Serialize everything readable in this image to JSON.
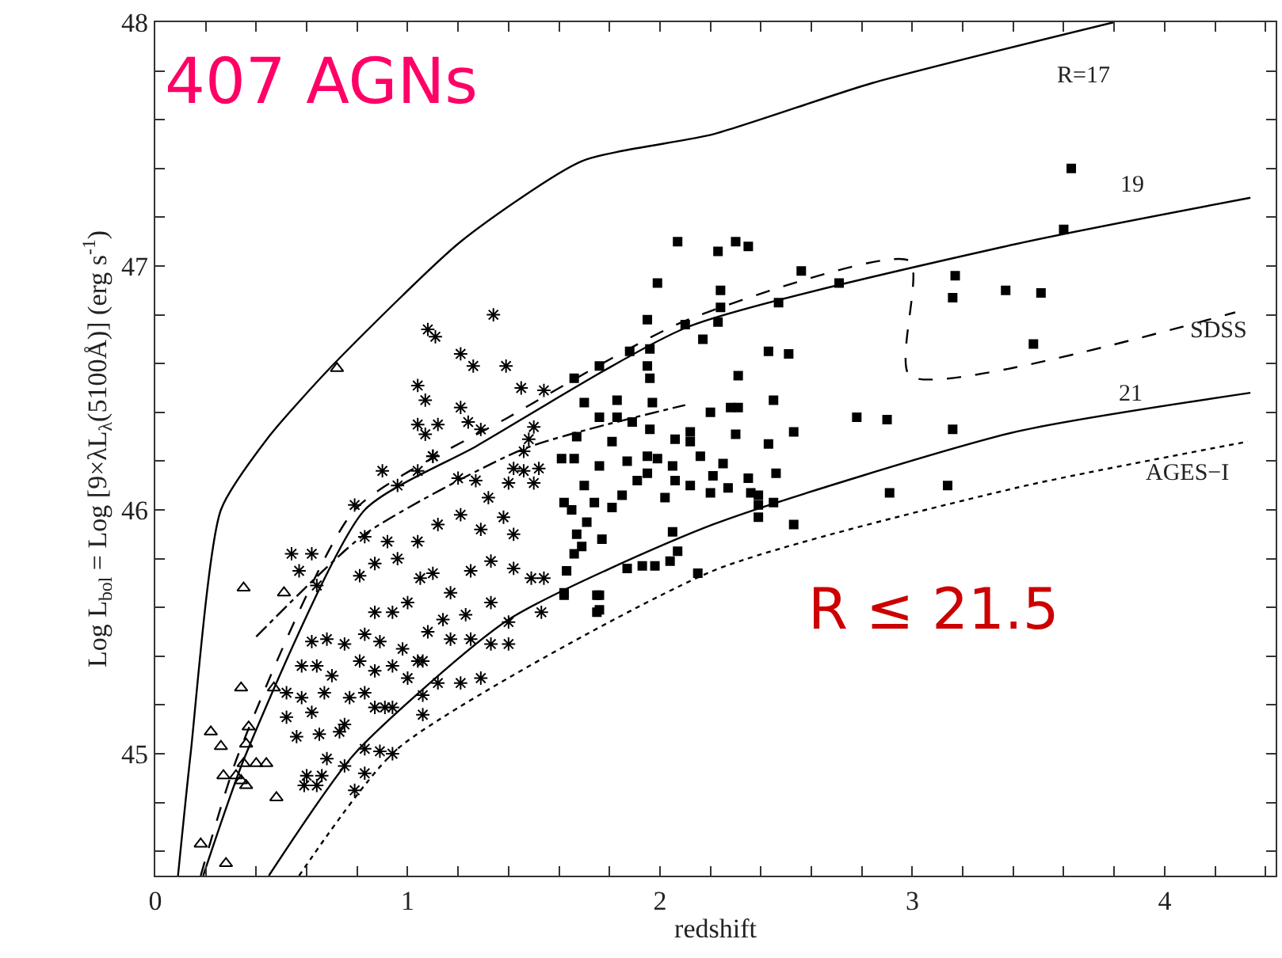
{
  "chart_data": {
    "type": "scatter",
    "xlabel": "redshift",
    "ylabel": "Log L$_{bol}$ = Log [9×λL$_{λ}$(5100Å)] (erg s$^{-1}$)",
    "xlim": [
      0,
      4.44
    ],
    "ylim": [
      44.5,
      48
    ],
    "xticks": [
      0,
      {
        "value": 0.2,
        "label": null
      },
      {
        "value": 0.4,
        "label": null
      },
      {
        "value": 0.6,
        "label": null
      },
      {
        "value": 0.8,
        "label": null
      },
      1,
      {
        "value": 1.2,
        "label": null
      },
      {
        "value": 1.4,
        "label": null
      },
      {
        "value": 1.6,
        "label": null
      },
      {
        "value": 1.8,
        "label": null
      },
      2,
      {
        "value": 2.2,
        "label": null
      },
      {
        "value": 2.4,
        "label": null
      },
      {
        "value": 2.6,
        "label": null
      },
      {
        "value": 2.8,
        "label": null
      },
      3,
      {
        "value": 3.2,
        "label": null
      },
      {
        "value": 3.4,
        "label": null
      },
      {
        "value": 3.6,
        "label": null
      },
      {
        "value": 3.8,
        "label": null
      },
      4,
      {
        "value": 4.2,
        "label": null
      },
      {
        "value": 4.4,
        "label": null
      }
    ],
    "yticks": [
      {
        "value": 44.6,
        "label": null
      },
      {
        "value": 44.8,
        "label": null
      },
      45,
      {
        "value": 45.2,
        "label": null
      },
      {
        "value": 45.4,
        "label": null
      },
      {
        "value": 45.6,
        "label": null
      },
      {
        "value": 45.8,
        "label": null
      },
      46,
      {
        "value": 46.2,
        "label": null
      },
      {
        "value": 46.4,
        "label": null
      },
      {
        "value": 46.6,
        "label": null
      },
      {
        "value": 46.8,
        "label": null
      },
      47,
      {
        "value": 47.2,
        "label": null
      },
      {
        "value": 47.4,
        "label": null
      },
      {
        "value": 47.6,
        "label": null
      },
      {
        "value": 47.8,
        "label": null
      },
      48
    ],
    "annotations": [
      "407 AGNs",
      "R ≤ 21.5"
    ],
    "series": [
      {
        "type": "line",
        "name": "R=17",
        "color": "#000000",
        "line_style": "solid",
        "x": [
          0.09,
          0.14,
          0.26,
          0.45,
          0.7,
          1.21,
          1.69,
          2.21,
          2.84,
          3.8
        ],
        "values": [
          44.5,
          45,
          46,
          46.3,
          46.59,
          47.1,
          47.43,
          47.54,
          47.75,
          48
        ]
      },
      {
        "type": "line",
        "name": "19",
        "color": "#000000",
        "line_style": "solid",
        "x": [
          0.19,
          0.36,
          0.83,
          1.27,
          2.11,
          3.41,
          4.34
        ],
        "values": [
          44.5,
          45,
          46,
          46.26,
          46.75,
          47.09,
          47.28
        ]
      },
      {
        "type": "line",
        "name": "SDSS",
        "color": "#000000",
        "line_style": "dashed",
        "x": [
          0.18,
          0.33,
          0.79,
          1.4,
          2.11,
          2.99,
          2.99,
          4.28
        ],
        "values": [
          44.5,
          45,
          46,
          46.38,
          46.78,
          47.02,
          46.55,
          46.81
        ]
      },
      {
        "type": "line",
        "name": "21",
        "color": "#000000",
        "line_style": "solid",
        "x": [
          0.45,
          0.79,
          1.4,
          2.21,
          3.41,
          4.34
        ],
        "values": [
          44.5,
          45,
          45.55,
          45.94,
          46.32,
          46.48
        ]
      },
      {
        "type": "line",
        "name": "AGES−I",
        "color": "#000000",
        "line_style": "dotted",
        "x": [
          0.57,
          0.96,
          2.21,
          3.41,
          4.33
        ],
        "values": [
          44.5,
          45.02,
          45.75,
          46.09,
          46.28
        ]
      },
      {
        "type": "line",
        "color": "#000000",
        "line_style": "dashdot",
        "x": [
          0.4,
          0.83,
          1.46,
          2.1
        ],
        "values": [
          45.48,
          45.9,
          46.25,
          46.43
        ]
      },
      {
        "marker": "triangle",
        "color": "#000000",
        "x": [
          0.35,
          0.51,
          0.34,
          0.22,
          0.26,
          0.36,
          0.37,
          0.35,
          0.4,
          0.44,
          0.27,
          0.32,
          0.34,
          0.36,
          0.48,
          0.18,
          0.28,
          0.47,
          0.72
        ],
        "values": [
          45.68,
          45.66,
          45.27,
          45.09,
          45.03,
          45.04,
          45.11,
          44.96,
          44.96,
          44.96,
          44.91,
          44.91,
          44.89,
          44.87,
          44.82,
          44.63,
          44.55,
          45.27,
          46.58
        ]
      },
      {
        "marker": "cross",
        "color": "#000000",
        "x": [
          0.9,
          0.96,
          1.04,
          1.1,
          1.2,
          1.27,
          1.32,
          1.4,
          1.46,
          1.52,
          1.5,
          0.79,
          0.83,
          0.92,
          1.04,
          1.12,
          1.21,
          1.29,
          1.38,
          1.42,
          0.54,
          0.62,
          0.57,
          0.64,
          0.81,
          0.87,
          0.96,
          1.05,
          1.1,
          1.17,
          1.25,
          1.33,
          1.42,
          1.49,
          1.54,
          0.87,
          0.94,
          1.0,
          1.08,
          1.14,
          1.23,
          1.33,
          1.4,
          1.53,
          0.62,
          0.68,
          0.75,
          0.83,
          0.89,
          0.98,
          1.06,
          1.17,
          1.25,
          1.33,
          1.4,
          0.58,
          0.64,
          0.7,
          0.81,
          0.87,
          0.94,
          1.0,
          1.04,
          1.12,
          1.21,
          1.29,
          0.52,
          0.58,
          0.67,
          0.77,
          0.83,
          0.91,
          1.06,
          0.62,
          0.75,
          0.87,
          0.94,
          1.06,
          0.52,
          0.56,
          0.65,
          0.73,
          0.83,
          0.89,
          0.94,
          0.6,
          0.66,
          0.75,
          0.83,
          0.59,
          0.64,
          0.79,
          0.68,
          1.08,
          1.11,
          1.21,
          1.26,
          1.34,
          1.39,
          1.04,
          1.07,
          1.45,
          1.54,
          1.21,
          1.04,
          1.07,
          1.12,
          1.24,
          1.29,
          1.5,
          1.48,
          1.1,
          1.46,
          1.42
        ],
        "values": [
          46.16,
          46.1,
          46.16,
          46.22,
          46.13,
          46.12,
          46.05,
          46.11,
          46.16,
          46.17,
          46.11,
          46.02,
          45.89,
          45.87,
          45.87,
          45.94,
          45.98,
          45.92,
          45.97,
          45.9,
          45.82,
          45.82,
          45.75,
          45.69,
          45.73,
          45.78,
          45.8,
          45.72,
          45.74,
          45.66,
          45.75,
          45.79,
          45.76,
          45.72,
          45.72,
          45.58,
          45.58,
          45.62,
          45.5,
          45.55,
          45.57,
          45.62,
          45.54,
          45.58,
          45.46,
          45.47,
          45.45,
          45.49,
          45.46,
          45.43,
          45.38,
          45.47,
          45.47,
          45.45,
          45.45,
          45.36,
          45.36,
          45.32,
          45.38,
          45.34,
          45.36,
          45.31,
          45.38,
          45.29,
          45.29,
          45.31,
          45.25,
          45.23,
          45.25,
          45.23,
          45.25,
          45.19,
          45.24,
          45.17,
          45.12,
          45.19,
          45.19,
          45.16,
          45.15,
          45.07,
          45.08,
          45.09,
          45.02,
          45.01,
          45.0,
          44.91,
          44.91,
          44.95,
          44.92,
          44.87,
          44.87,
          44.85,
          44.98,
          46.74,
          46.71,
          46.64,
          46.59,
          46.8,
          46.59,
          46.51,
          46.45,
          46.5,
          46.49,
          46.42,
          46.35,
          46.31,
          46.35,
          46.36,
          46.33,
          46.34,
          46.29,
          46.22,
          46.24,
          46.17
        ]
      },
      {
        "marker": "square",
        "color": "#000000",
        "x": [
          2.07,
          2.23,
          2.3,
          2.35,
          2.56,
          1.99,
          2.24,
          2.71,
          2.24,
          2.47,
          1.95,
          2.1,
          2.23,
          2.17,
          1.88,
          1.96,
          2.43,
          2.51,
          1.95,
          1.76,
          1.66,
          1.96,
          2.31,
          1.7,
          1.83,
          1.97,
          2.28,
          2.31,
          2.2,
          2.45,
          2.78,
          2.9,
          3.16,
          1.76,
          1.83,
          1.89,
          1.96,
          2.12,
          2.3,
          2.53,
          1.67,
          1.81,
          2.06,
          2.12,
          2.43,
          1.61,
          1.66,
          1.76,
          1.87,
          1.95,
          1.99,
          2.05,
          2.16,
          2.25,
          2.46,
          1.7,
          1.91,
          1.95,
          2.06,
          2.21,
          2.12,
          2.35,
          2.2,
          2.27,
          2.36,
          2.39,
          2.02,
          1.85,
          1.74,
          1.81,
          1.62,
          1.65,
          2.39,
          2.45,
          2.39,
          1.71,
          1.67,
          1.77,
          2.05,
          2.53,
          1.69,
          1.66,
          2.07,
          1.63,
          1.87,
          1.93,
          1.98,
          2.04,
          2.15,
          1.62,
          1.76,
          1.76,
          2.91,
          3.14,
          3.17,
          3.16,
          3.37,
          3.63,
          3.6,
          3.51,
          3.48,
          1.62,
          1.75,
          1.75
        ],
        "values": [
          47.1,
          47.06,
          47.1,
          47.08,
          46.98,
          46.93,
          46.9,
          46.93,
          46.83,
          46.85,
          46.78,
          46.76,
          46.77,
          46.7,
          46.65,
          46.66,
          46.65,
          46.64,
          46.59,
          46.59,
          46.54,
          46.54,
          46.55,
          46.44,
          46.45,
          46.44,
          46.42,
          46.42,
          46.4,
          46.45,
          46.38,
          46.37,
          46.33,
          46.38,
          46.38,
          46.36,
          46.33,
          46.32,
          46.31,
          46.32,
          46.3,
          46.28,
          46.29,
          46.28,
          46.27,
          46.21,
          46.21,
          46.18,
          46.2,
          46.22,
          46.21,
          46.18,
          46.22,
          46.19,
          46.15,
          46.1,
          46.12,
          46.15,
          46.12,
          46.14,
          46.1,
          46.13,
          46.07,
          46.09,
          46.07,
          46.06,
          46.05,
          46.06,
          46.03,
          46.01,
          46.03,
          46.0,
          46.02,
          46.03,
          45.97,
          45.95,
          45.9,
          45.88,
          45.91,
          45.94,
          45.85,
          45.82,
          45.83,
          45.75,
          45.76,
          45.77,
          45.77,
          45.79,
          45.74,
          45.66,
          45.65,
          45.59,
          46.07,
          46.1,
          46.96,
          46.87,
          46.9,
          47.4,
          47.15,
          46.89,
          46.68,
          45.65,
          45.65,
          45.58
        ]
      }
    ]
  }
}
